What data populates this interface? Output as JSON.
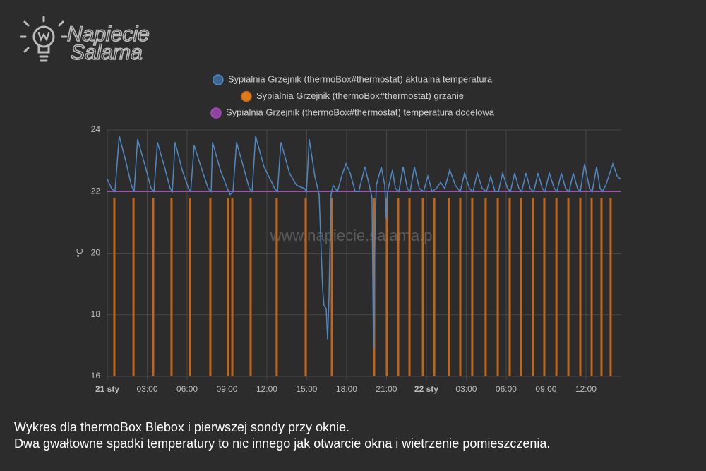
{
  "logo": {
    "line1": "Napiecie",
    "line2": "Salama"
  },
  "chart_data": {
    "type": "line",
    "ylabel": "°C",
    "watermark": "www.napiecie.salama.pl",
    "xlim": [
      0,
      38.66
    ],
    "xticks": [
      {
        "value": 0,
        "label": "21 sty"
      },
      {
        "value": 3,
        "label": "03:00"
      },
      {
        "value": 6,
        "label": "06:00"
      },
      {
        "value": 9,
        "label": "09:00"
      },
      {
        "value": 12,
        "label": "12:00"
      },
      {
        "value": 15,
        "label": "15:00"
      },
      {
        "value": 18,
        "label": "18:00"
      },
      {
        "value": 21,
        "label": "21:00"
      },
      {
        "value": 24,
        "label": "22 sty"
      },
      {
        "value": 27,
        "label": "03:00"
      },
      {
        "value": 30,
        "label": "06:00"
      },
      {
        "value": 33,
        "label": "09:00"
      },
      {
        "value": 36,
        "label": "12:00"
      }
    ],
    "ylim": [
      16,
      24
    ],
    "yticks": [
      16,
      18,
      20,
      22,
      24
    ],
    "grid": true,
    "series": [
      {
        "name": "Sypialnia Grzejnik (thermoBox#thermostat) aktualna temperatura",
        "type": "line",
        "color": "#4f88c6",
        "legend_color": "#3d6690",
        "x": [
          0,
          0.32,
          0.58,
          0.9,
          1.38,
          1.81,
          2.02,
          2.28,
          2.87,
          3.29,
          3.51,
          3.77,
          4.3,
          4.73,
          4.89,
          5.1,
          5.63,
          6.11,
          6.27,
          6.53,
          7.12,
          7.59,
          7.81,
          7.91,
          8.5,
          9.03,
          9.24,
          9.45,
          9.72,
          10.3,
          10.68,
          10.89,
          11.15,
          11.79,
          12.59,
          12.8,
          13.06,
          13.7,
          14.23,
          14.82,
          14.98,
          15.19,
          15.61,
          15.93,
          16.09,
          16.2,
          16.3,
          16.46,
          16.57,
          16.67,
          16.83,
          16.99,
          17.31,
          17.63,
          17.95,
          18.27,
          18.64,
          18.91,
          19.38,
          19.76,
          19.91,
          20.02,
          20.13,
          20.23,
          20.61,
          20.87,
          20.98,
          21.08,
          21.45,
          21.67,
          21.93,
          22.25,
          22.57,
          22.78,
          23.1,
          23.47,
          23.79,
          24.11,
          24.43,
          24.75,
          25.07,
          25.38,
          25.76,
          26.18,
          26.55,
          26.87,
          27.24,
          27.51,
          27.83,
          28.2,
          28.52,
          28.84,
          29.16,
          29.42,
          29.74,
          30.11,
          30.32,
          30.64,
          30.96,
          31.17,
          31.49,
          31.81,
          32.08,
          32.4,
          32.72,
          32.93,
          33.25,
          33.62,
          33.83,
          34.15,
          34.47,
          34.73,
          35.05,
          35.37,
          35.58,
          35.9,
          36.27,
          36.48,
          36.8,
          37.07,
          37.23,
          37.49,
          38.03,
          38.35,
          38.61
        ],
        "values": [
          22.4,
          22.1,
          22.0,
          23.8,
          23.0,
          22.2,
          22.0,
          23.7,
          22.8,
          22.1,
          22.0,
          23.6,
          22.8,
          22.1,
          22.0,
          23.6,
          22.7,
          22.1,
          22.0,
          23.5,
          22.7,
          22.1,
          22.0,
          23.6,
          22.7,
          22.1,
          21.9,
          22.0,
          23.6,
          22.7,
          22.1,
          22.0,
          23.8,
          22.8,
          22.1,
          22.0,
          23.6,
          22.6,
          22.2,
          22.1,
          22.0,
          23.7,
          22.5,
          21.9,
          20.0,
          18.8,
          18.3,
          18.2,
          17.2,
          18.5,
          21.9,
          22.2,
          22.0,
          22.5,
          22.9,
          22.6,
          22.0,
          22.0,
          22.8,
          22.1,
          21.8,
          16.9,
          20.5,
          22.2,
          22.8,
          22.2,
          21.1,
          22.0,
          22.7,
          22.1,
          22.0,
          22.8,
          22.1,
          22.0,
          22.8,
          22.1,
          22.0,
          22.5,
          22.0,
          22.1,
          22.3,
          22.1,
          22.7,
          22.2,
          22.0,
          22.6,
          22.1,
          22.0,
          22.6,
          22.1,
          22.0,
          22.5,
          22.0,
          22.0,
          22.6,
          22.1,
          22.0,
          22.6,
          22.1,
          22.0,
          22.6,
          22.1,
          22.0,
          22.6,
          22.1,
          22.0,
          22.6,
          22.1,
          22.0,
          22.6,
          22.1,
          22.0,
          22.6,
          22.1,
          22.0,
          22.9,
          22.1,
          22.0,
          22.8,
          22.1,
          22.0,
          22.2,
          22.9,
          22.5,
          22.4
        ]
      },
      {
        "name": "Sypialnia Grzejnik (thermoBox#thermostat) grzanie",
        "type": "bar",
        "color": "#c0661a",
        "legend_color": "#e07b1a",
        "x": [
          0.53,
          1.97,
          3.45,
          4.83,
          6.21,
          7.75,
          9.08,
          9.4,
          10.78,
          12.74,
          14.92,
          16.89,
          20.07,
          21.03,
          21.88,
          22.73,
          23.74,
          24.59,
          25.7,
          26.55,
          27.45,
          28.46,
          29.37,
          30.27,
          31.12,
          32.02,
          32.87,
          33.78,
          34.68,
          35.58,
          36.43,
          37.17,
          37.86
        ],
        "values": [
          21.8,
          21.8,
          21.8,
          21.8,
          21.8,
          21.8,
          21.8,
          21.8,
          21.8,
          21.8,
          21.8,
          21.8,
          21.8,
          21.8,
          21.8,
          21.8,
          21.8,
          21.8,
          21.8,
          21.8,
          21.8,
          21.8,
          21.8,
          21.8,
          21.8,
          21.8,
          21.8,
          21.8,
          21.8,
          21.8,
          21.8,
          21.8,
          21.8
        ]
      },
      {
        "name": "Sypialnia Grzejnik (thermoBox#thermostat) temperatura docelowa",
        "type": "line",
        "color": "#a24fb5",
        "legend_color": "#8e449e",
        "x": [
          0,
          38.66
        ],
        "values": [
          22,
          22
        ]
      }
    ]
  },
  "caption": [
    "Wykres dla thermoBox Blebox i pierwszej sondy przy oknie.",
    "Dwa gwałtowne spadki temperatury to nic innego jak otwarcie okna i wietrzenie pomieszczenia."
  ]
}
